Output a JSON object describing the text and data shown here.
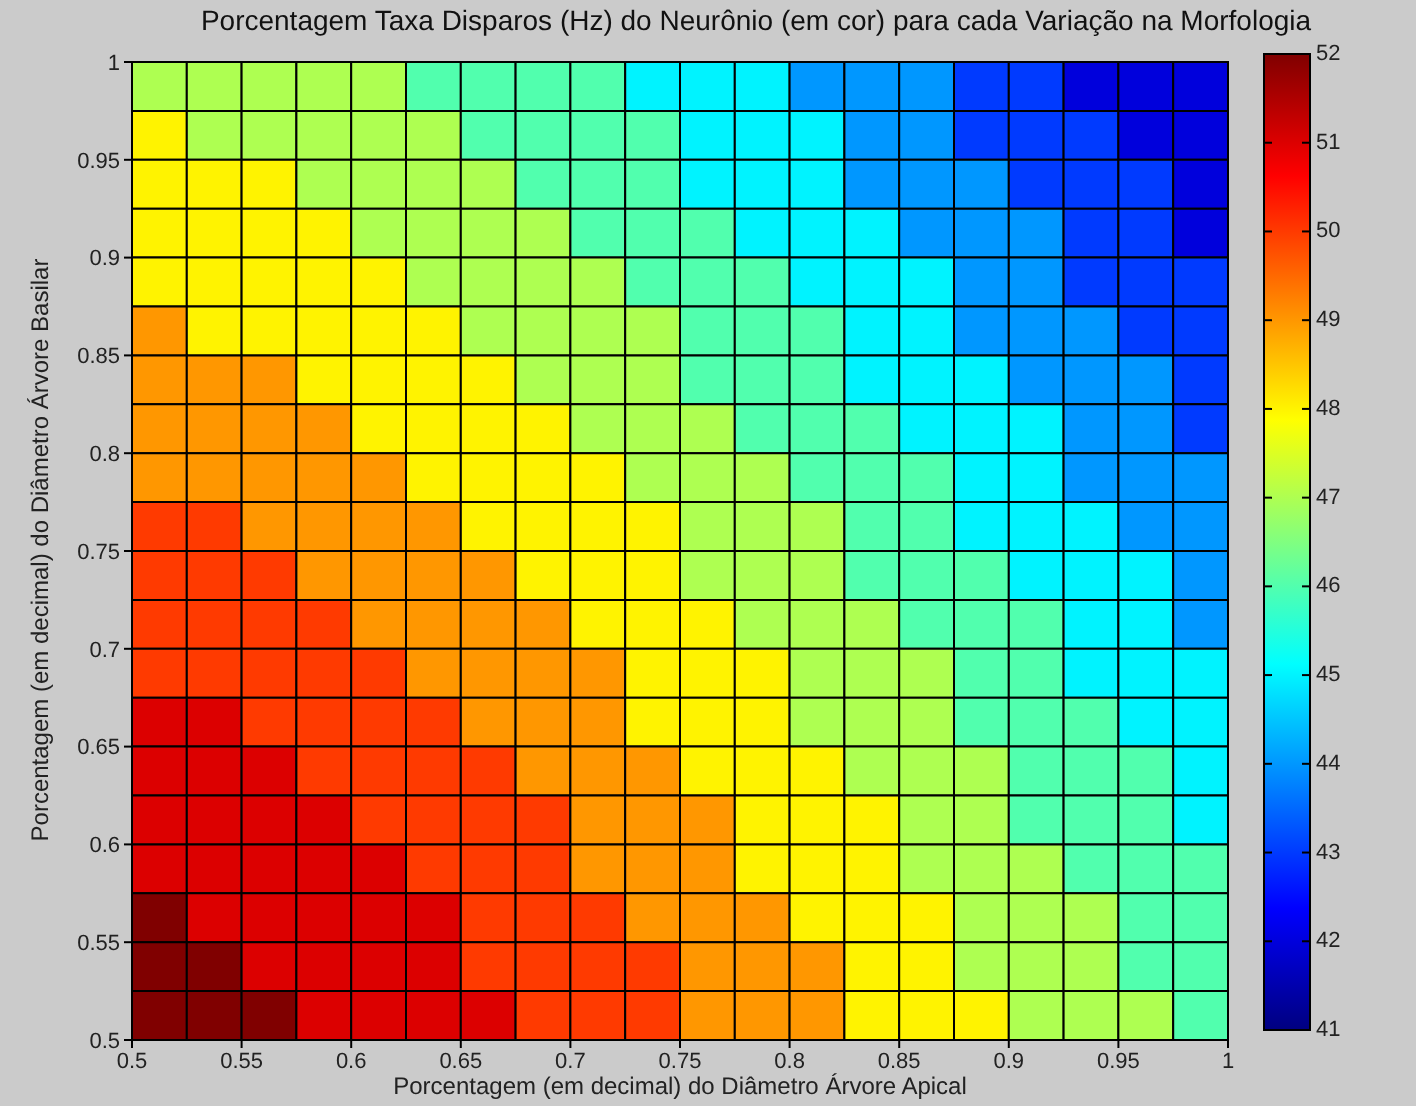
{
  "chart_data": {
    "type": "heatmap",
    "title": "Porcentagem Taxa Disparos (Hz) do Neurônio (em cor) para cada Variação na Morfologia",
    "xlabel": "Porcentagem (em decimal) do Diâmetro Árvore Apical",
    "ylabel": "Porcentagem (em decimal) do Diâmetro Árvore Basilar",
    "xlim": [
      0.5,
      1
    ],
    "xticks": [
      0.5,
      0.55,
      0.6,
      0.65,
      0.7,
      0.75,
      0.8,
      0.85,
      0.9,
      0.95,
      1
    ],
    "ylim": [
      0.5,
      1
    ],
    "yticks": [
      0.5,
      0.55,
      0.6,
      0.65,
      0.7,
      0.75,
      0.8,
      0.85,
      0.9,
      0.95,
      1
    ],
    "clim": [
      41,
      52
    ],
    "cticks": [
      41,
      42,
      43,
      44,
      45,
      46,
      47,
      48,
      49,
      50,
      51,
      52
    ],
    "cells": [
      [
        47,
        47,
        47,
        47,
        47,
        46,
        46,
        46,
        46,
        45,
        45,
        45,
        44,
        44,
        44,
        43,
        43,
        42,
        42,
        42
      ],
      [
        48,
        47,
        47,
        47,
        47,
        47,
        46,
        46,
        46,
        46,
        45,
        45,
        45,
        44,
        44,
        43,
        43,
        43,
        42,
        42
      ],
      [
        48,
        48,
        48,
        47,
        47,
        47,
        47,
        46,
        46,
        46,
        45,
        45,
        45,
        44,
        44,
        44,
        43,
        43,
        43,
        42
      ],
      [
        48,
        48,
        48,
        48,
        47,
        47,
        47,
        47,
        46,
        46,
        46,
        45,
        45,
        45,
        44,
        44,
        44,
        43,
        43,
        42
      ],
      [
        48,
        48,
        48,
        48,
        48,
        47,
        47,
        47,
        47,
        46,
        46,
        46,
        45,
        45,
        45,
        44,
        44,
        43,
        43,
        43
      ],
      [
        49,
        48,
        48,
        48,
        48,
        48,
        47,
        47,
        47,
        47,
        46,
        46,
        46,
        45,
        45,
        44,
        44,
        44,
        43,
        43
      ],
      [
        49,
        49,
        49,
        48,
        48,
        48,
        48,
        47,
        47,
        47,
        46,
        46,
        46,
        45,
        45,
        45,
        44,
        44,
        44,
        43
      ],
      [
        49,
        49,
        49,
        49,
        48,
        48,
        48,
        48,
        47,
        47,
        47,
        46,
        46,
        46,
        45,
        45,
        45,
        44,
        44,
        43
      ],
      [
        49,
        49,
        49,
        49,
        49,
        48,
        48,
        48,
        48,
        47,
        47,
        47,
        46,
        46,
        46,
        45,
        45,
        44,
        44,
        44
      ],
      [
        50,
        50,
        49,
        49,
        49,
        49,
        48,
        48,
        48,
        48,
        47,
        47,
        47,
        46,
        46,
        45,
        45,
        45,
        44,
        44
      ],
      [
        50,
        50,
        50,
        49,
        49,
        49,
        49,
        48,
        48,
        48,
        47,
        47,
        47,
        46,
        46,
        46,
        45,
        45,
        45,
        44
      ],
      [
        50,
        50,
        50,
        50,
        49,
        49,
        49,
        49,
        48,
        48,
        48,
        47,
        47,
        47,
        46,
        46,
        46,
        45,
        45,
        44
      ],
      [
        50,
        50,
        50,
        50,
        50,
        49,
        49,
        49,
        49,
        48,
        48,
        48,
        47,
        47,
        47,
        46,
        46,
        45,
        45,
        45
      ],
      [
        51,
        51,
        50,
        50,
        50,
        50,
        49,
        49,
        49,
        48,
        48,
        48,
        47,
        47,
        47,
        46,
        46,
        46,
        45,
        45
      ],
      [
        51,
        51,
        51,
        50,
        50,
        50,
        50,
        49,
        49,
        49,
        48,
        48,
        48,
        47,
        47,
        47,
        46,
        46,
        46,
        45
      ],
      [
        51,
        51,
        51,
        51,
        50,
        50,
        50,
        50,
        49,
        49,
        49,
        48,
        48,
        48,
        47,
        47,
        46,
        46,
        46,
        45
      ],
      [
        51,
        51,
        51,
        51,
        51,
        50,
        50,
        50,
        49,
        49,
        49,
        48,
        48,
        48,
        47,
        47,
        47,
        46,
        46,
        46
      ],
      [
        52,
        51,
        51,
        51,
        51,
        51,
        50,
        50,
        50,
        49,
        49,
        49,
        48,
        48,
        48,
        47,
        47,
        47,
        46,
        46
      ],
      [
        52,
        52,
        51,
        51,
        51,
        51,
        50,
        50,
        50,
        50,
        49,
        49,
        49,
        48,
        48,
        47,
        47,
        47,
        46,
        46
      ],
      [
        52,
        52,
        52,
        51,
        51,
        51,
        51,
        50,
        50,
        50,
        49,
        49,
        49,
        48,
        48,
        48,
        47,
        47,
        47,
        46
      ]
    ]
  }
}
